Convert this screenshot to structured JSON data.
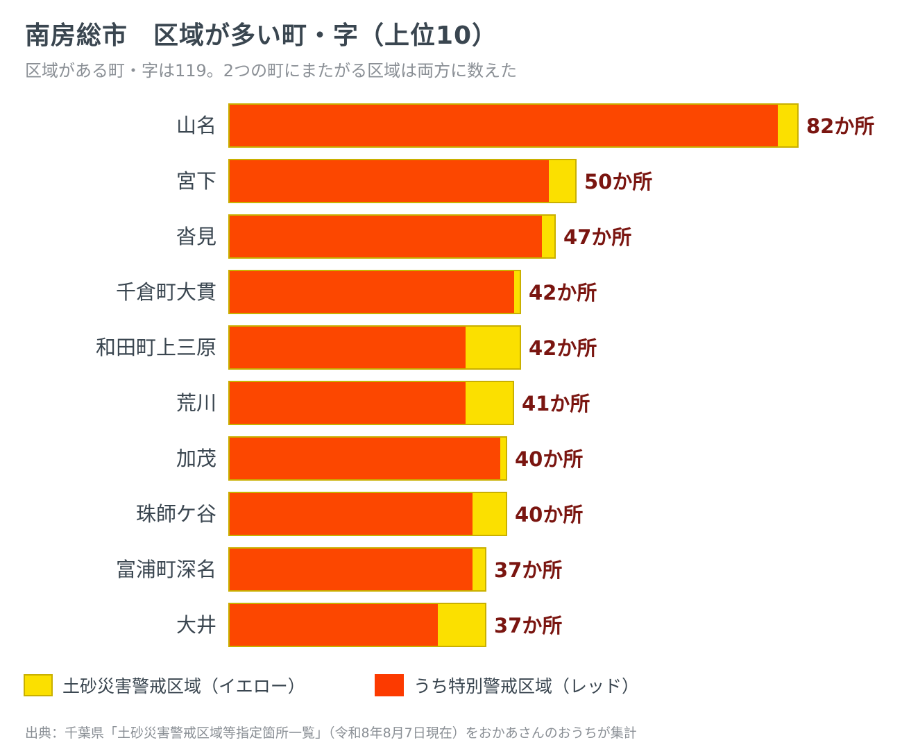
{
  "header": {
    "title": "南房総市　区域が多い町・字（上位10）",
    "subtitle": "区域がある町・字は119。2つの町にまたがる区域は両方に数えた"
  },
  "chart_data": {
    "type": "bar",
    "orientation": "horizontal",
    "stacked": true,
    "categories": [
      "山名",
      "宮下",
      "沓見",
      "千倉町大貫",
      "和田町上三原",
      "荒川",
      "加茂",
      "珠師ケ谷",
      "富浦町深名",
      "大井"
    ],
    "series": [
      {
        "name": "うち特別警戒区域（レッド）",
        "color": "#fc4700",
        "values": [
          79,
          46,
          45,
          41,
          34,
          34,
          39,
          35,
          35,
          30
        ]
      },
      {
        "name": "土砂災害警戒区域（イエロー）",
        "color": "#fbe000",
        "values": [
          3,
          4,
          2,
          1,
          8,
          7,
          1,
          5,
          2,
          7
        ]
      }
    ],
    "totals": [
      82,
      50,
      47,
      42,
      42,
      41,
      40,
      40,
      37,
      37
    ],
    "value_labels": [
      "82か所",
      "50か所",
      "47か所",
      "42か所",
      "42か所",
      "41か所",
      "40か所",
      "40か所",
      "37か所",
      "37か所"
    ],
    "xlim": [
      0,
      82
    ],
    "grid": false,
    "legend_position": "bottom"
  },
  "legend": {
    "yellow_label": "土砂災害警戒区域（イエロー）",
    "red_label": "うち特別警戒区域（レッド）",
    "yellow_color": "#fbe000",
    "red_color": "#fc3a00"
  },
  "source": "出典：千葉県「土砂災害警戒区域等指定箇所一覧」（令和8年8月7日現在）をおかあさんのおうちが集計"
}
